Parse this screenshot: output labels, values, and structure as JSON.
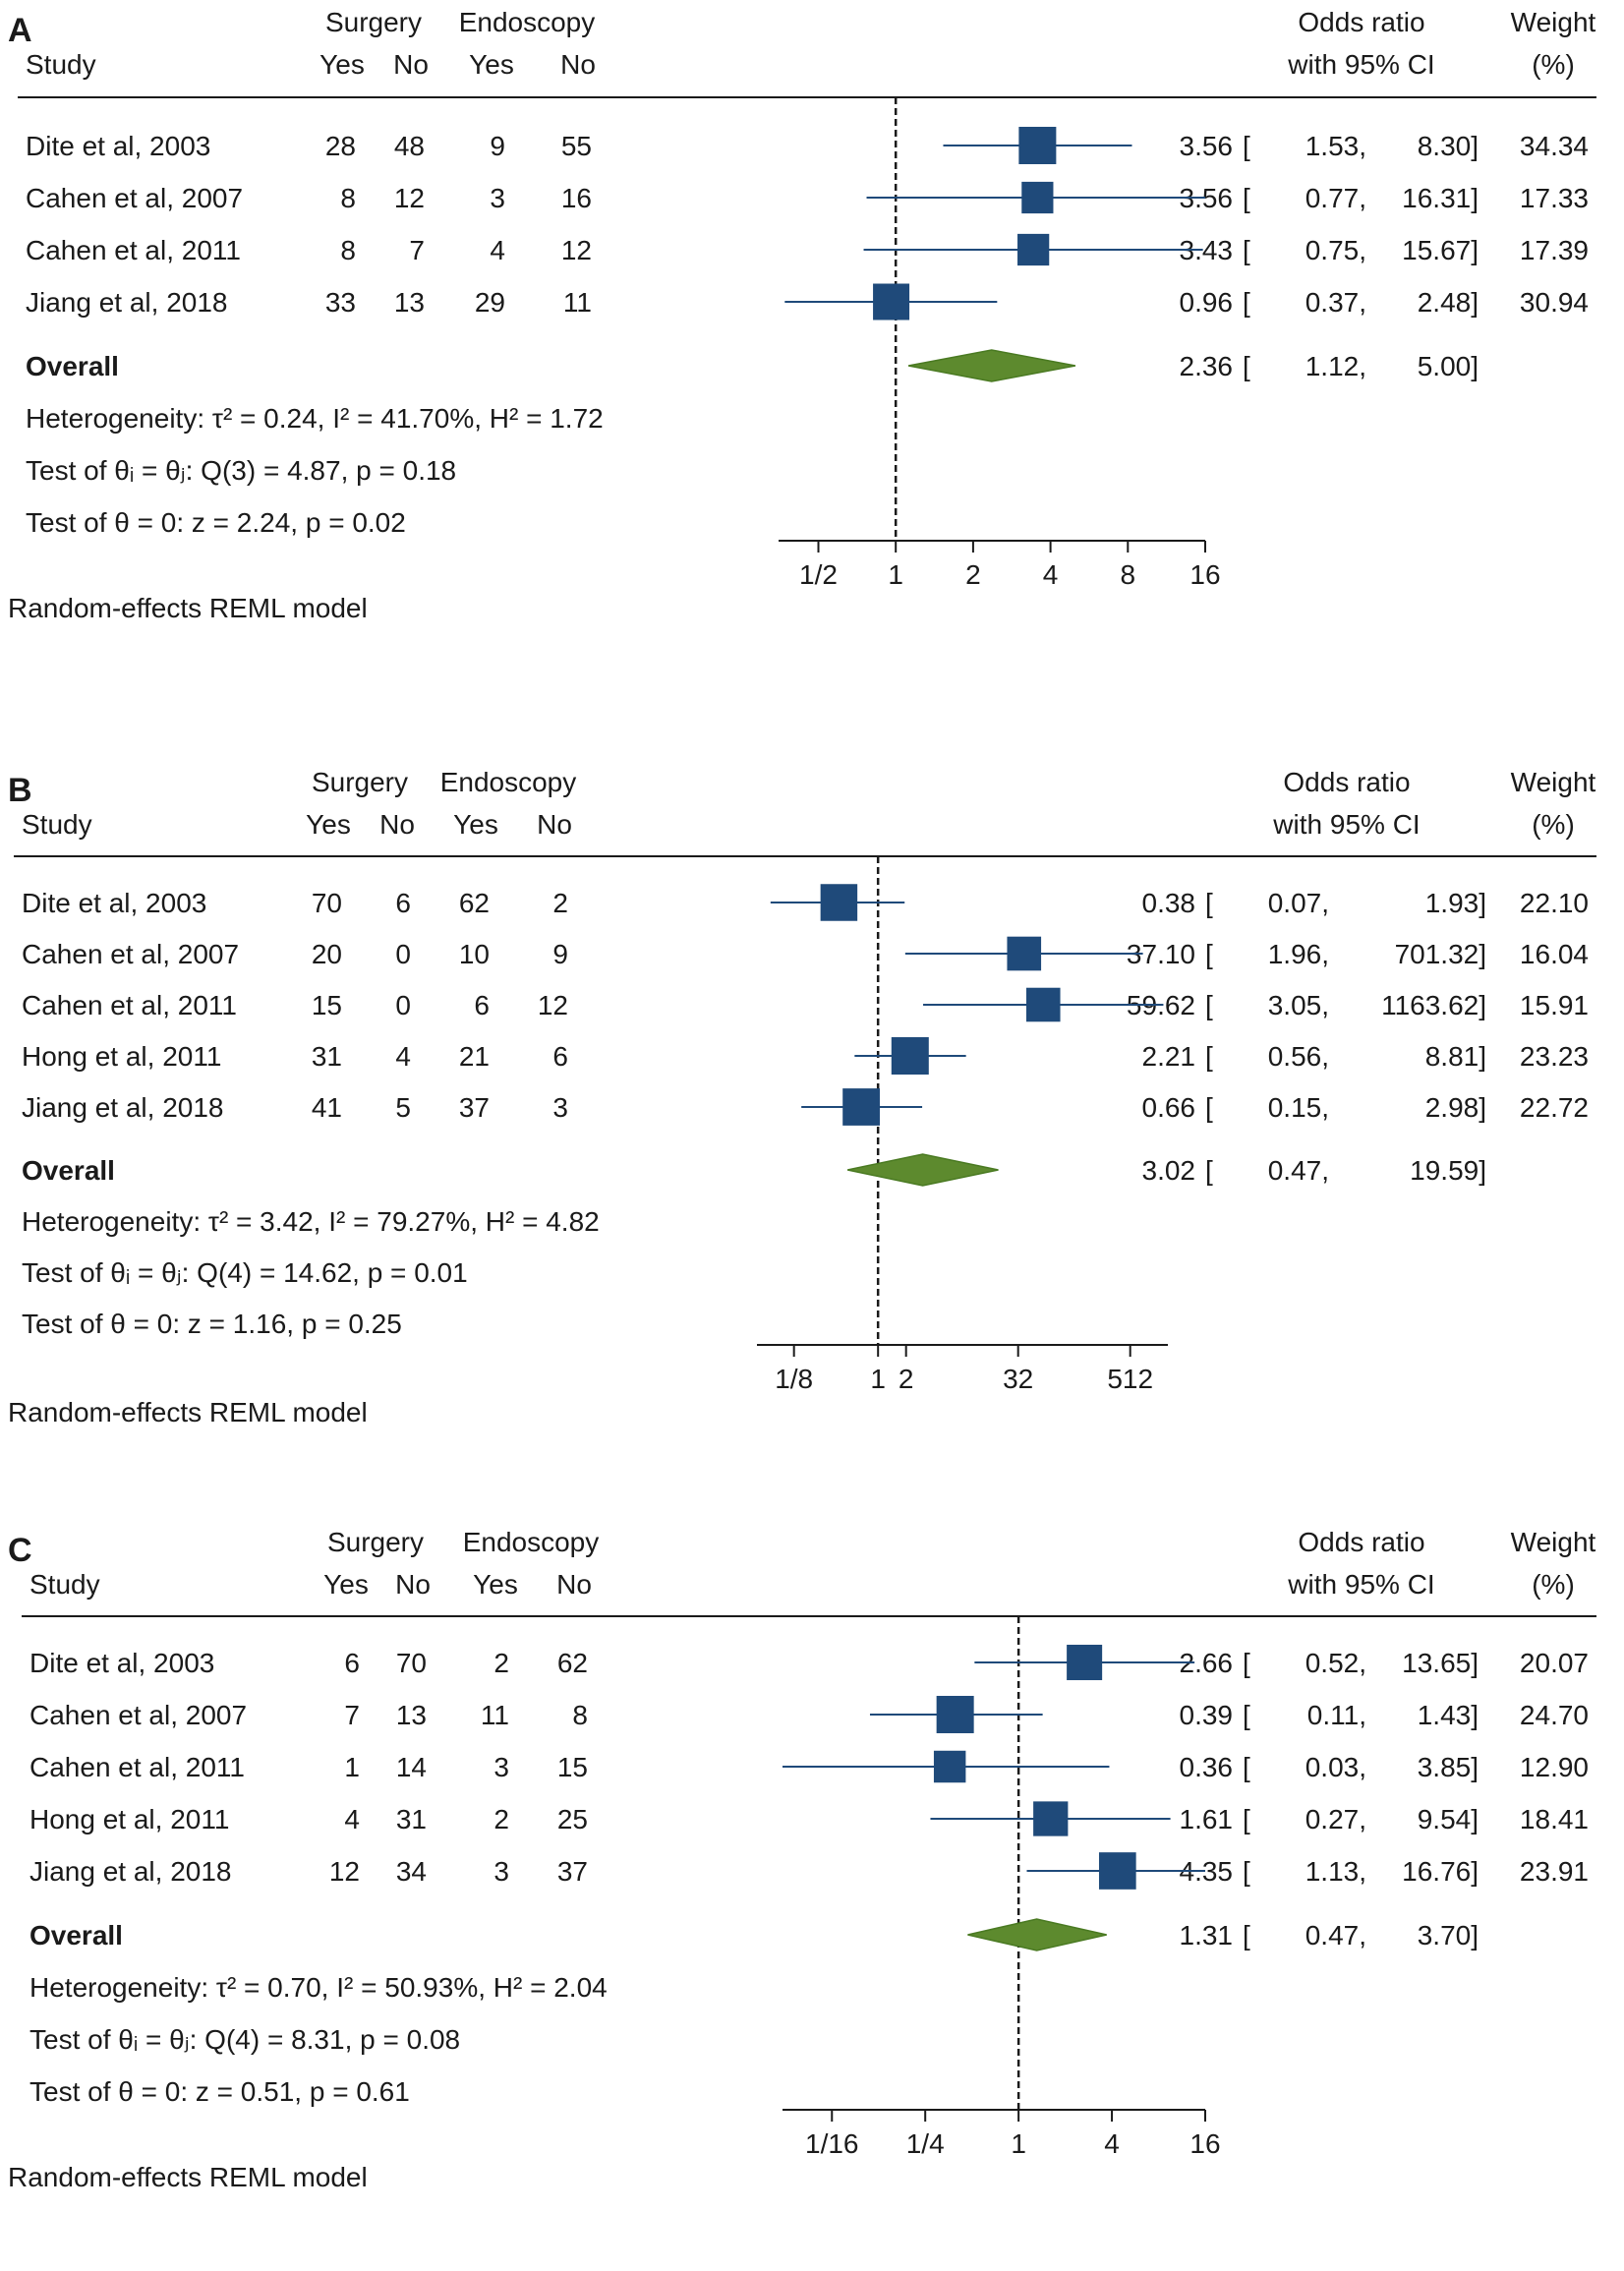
{
  "chart_data": [
    {
      "type": "forest",
      "panel_label": "A",
      "headers": {
        "study": "Study",
        "group1": "Surgery",
        "group2": "Endoscopy",
        "yes": "Yes",
        "no": "No",
        "or_line1": "Odds ratio",
        "or_line2": "with 95% CI",
        "weight_line1": "Weight",
        "weight_line2": "(%)"
      },
      "studies": [
        {
          "name": "Dite et al, 2003",
          "g1_yes": "28",
          "g1_no": "48",
          "g2_yes": "9",
          "g2_no": "55",
          "or": 3.56,
          "lo": 1.53,
          "hi": 8.3,
          "or_text": "3.56",
          "lo_text": "1.53,",
          "hi_text": "8.30]",
          "weight": 34.34,
          "weight_text": "34.34"
        },
        {
          "name": "Cahen et al, 2007",
          "g1_yes": "8",
          "g1_no": "12",
          "g2_yes": "3",
          "g2_no": "16",
          "or": 3.56,
          "lo": 0.77,
          "hi": 16.31,
          "or_text": "3.56",
          "lo_text": "0.77,",
          "hi_text": "16.31]",
          "weight": 17.33,
          "weight_text": "17.33"
        },
        {
          "name": "Cahen et al, 2011",
          "g1_yes": "8",
          "g1_no": "7",
          "g2_yes": "4",
          "g2_no": "12",
          "or": 3.43,
          "lo": 0.75,
          "hi": 15.67,
          "or_text": "3.43",
          "lo_text": "0.75,",
          "hi_text": "15.67]",
          "weight": 17.39,
          "weight_text": "17.39"
        },
        {
          "name": "Jiang et al, 2018",
          "g1_yes": "33",
          "g1_no": "13",
          "g2_yes": "29",
          "g2_no": "11",
          "or": 0.96,
          "lo": 0.37,
          "hi": 2.48,
          "or_text": "0.96",
          "lo_text": "0.37,",
          "hi_text": "2.48]",
          "weight": 30.94,
          "weight_text": "30.94"
        }
      ],
      "overall": {
        "label": "Overall",
        "or": 2.36,
        "lo": 1.12,
        "hi": 5.0,
        "or_text": "2.36",
        "lo_text": "1.12,",
        "hi_text": "5.00]"
      },
      "stats": {
        "heterogeneity": "Heterogeneity: τ² = 0.24, I² = 41.70%, H² = 1.72",
        "test_eq": "Test of θᵢ = θⱼ: Q(3) = 4.87, p = 0.18",
        "test_zero": "Test of θ = 0: z = 2.24, p = 0.02"
      },
      "x_ticks": [
        {
          "value": 0.5,
          "label": "1/2"
        },
        {
          "value": 1,
          "label": "1"
        },
        {
          "value": 2,
          "label": "2"
        },
        {
          "value": 4,
          "label": "4"
        },
        {
          "value": 8,
          "label": "8"
        },
        {
          "value": 16,
          "label": "16"
        }
      ],
      "x_range": [
        0.35,
        16
      ],
      "scale": "log2",
      "reference_line": 1,
      "model_note": "Random-effects REML model"
    },
    {
      "type": "forest",
      "panel_label": "B",
      "headers": {
        "study": "Study",
        "group1": "Surgery",
        "group2": "Endoscopy",
        "yes": "Yes",
        "no": "No",
        "or_line1": "Odds ratio",
        "or_line2": "with 95% CI",
        "weight_line1": "Weight",
        "weight_line2": "(%)"
      },
      "studies": [
        {
          "name": "Dite et al, 2003",
          "g1_yes": "70",
          "g1_no": "6",
          "g2_yes": "62",
          "g2_no": "2",
          "or": 0.38,
          "lo": 0.07,
          "hi": 1.93,
          "or_text": "0.38",
          "lo_text": "0.07,",
          "hi_text": "1.93]",
          "weight": 22.1,
          "weight_text": "22.10"
        },
        {
          "name": "Cahen et al, 2007",
          "g1_yes": "20",
          "g1_no": "0",
          "g2_yes": "10",
          "g2_no": "9",
          "or": 37.1,
          "lo": 1.96,
          "hi": 701.32,
          "or_text": "37.10",
          "lo_text": "1.96,",
          "hi_text": "701.32]",
          "weight": 16.04,
          "weight_text": "16.04"
        },
        {
          "name": "Cahen et al, 2011",
          "g1_yes": "15",
          "g1_no": "0",
          "g2_yes": "6",
          "g2_no": "12",
          "or": 59.62,
          "lo": 3.05,
          "hi": 1163.62,
          "or_text": "59.62",
          "lo_text": "3.05,",
          "hi_text": "1163.62]",
          "weight": 15.91,
          "weight_text": "15.91"
        },
        {
          "name": "Hong et al, 2011",
          "g1_yes": "31",
          "g1_no": "4",
          "g2_yes": "21",
          "g2_no": "6",
          "or": 2.21,
          "lo": 0.56,
          "hi": 8.81,
          "or_text": "2.21",
          "lo_text": "0.56,",
          "hi_text": "8.81]",
          "weight": 23.23,
          "weight_text": "23.23"
        },
        {
          "name": "Jiang et al, 2018",
          "g1_yes": "41",
          "g1_no": "5",
          "g2_yes": "37",
          "g2_no": "3",
          "or": 0.66,
          "lo": 0.15,
          "hi": 2.98,
          "or_text": "0.66",
          "lo_text": "0.15,",
          "hi_text": "2.98]",
          "weight": 22.72,
          "weight_text": "22.72"
        }
      ],
      "overall": {
        "label": "Overall",
        "or": 3.02,
        "lo": 0.47,
        "hi": 19.59,
        "or_text": "3.02",
        "lo_text": "0.47,",
        "hi_text": "19.59]"
      },
      "stats": {
        "heterogeneity": "Heterogeneity: τ² = 3.42, I² = 79.27%, H² = 4.82",
        "test_eq": "Test of θᵢ = θⱼ: Q(4) = 14.62, p = 0.01",
        "test_zero": "Test of θ = 0: z = 1.16, p = 0.25"
      },
      "x_ticks": [
        {
          "value": 0.125,
          "label": "1/8"
        },
        {
          "value": 1,
          "label": "1"
        },
        {
          "value": 2,
          "label": "2"
        },
        {
          "value": 32,
          "label": "32"
        },
        {
          "value": 512,
          "label": "512"
        }
      ],
      "x_range": [
        0.05,
        1300
      ],
      "scale": "log2",
      "reference_line": 1,
      "model_note": "Random-effects REML model"
    },
    {
      "type": "forest",
      "panel_label": "C",
      "headers": {
        "study": "Study",
        "group1": "Surgery",
        "group2": "Endoscopy",
        "yes": "Yes",
        "no": "No",
        "or_line1": "Odds ratio",
        "or_line2": "with 95% CI",
        "weight_line1": "Weight",
        "weight_line2": "(%)"
      },
      "studies": [
        {
          "name": "Dite et al, 2003",
          "g1_yes": "6",
          "g1_no": "70",
          "g2_yes": "2",
          "g2_no": "62",
          "or": 2.66,
          "lo": 0.52,
          "hi": 13.65,
          "or_text": "2.66",
          "lo_text": "0.52,",
          "hi_text": "13.65]",
          "weight": 20.07,
          "weight_text": "20.07"
        },
        {
          "name": "Cahen et al, 2007",
          "g1_yes": "7",
          "g1_no": "13",
          "g2_yes": "11",
          "g2_no": "8",
          "or": 0.39,
          "lo": 0.11,
          "hi": 1.43,
          "or_text": "0.39",
          "lo_text": "0.11,",
          "hi_text": "1.43]",
          "weight": 24.7,
          "weight_text": "24.70"
        },
        {
          "name": "Cahen et al, 2011",
          "g1_yes": "1",
          "g1_no": "14",
          "g2_yes": "3",
          "g2_no": "15",
          "or": 0.36,
          "lo": 0.03,
          "hi": 3.85,
          "or_text": "0.36",
          "lo_text": "0.03,",
          "hi_text": "3.85]",
          "weight": 12.9,
          "weight_text": "12.90"
        },
        {
          "name": "Hong et al, 2011",
          "g1_yes": "4",
          "g1_no": "31",
          "g2_yes": "2",
          "g2_no": "25",
          "or": 1.61,
          "lo": 0.27,
          "hi": 9.54,
          "or_text": "1.61",
          "lo_text": "0.27,",
          "hi_text": "9.54]",
          "weight": 18.41,
          "weight_text": "18.41"
        },
        {
          "name": "Jiang et al, 2018",
          "g1_yes": "12",
          "g1_no": "34",
          "g2_yes": "3",
          "g2_no": "37",
          "or": 4.35,
          "lo": 1.13,
          "hi": 16.76,
          "or_text": "4.35",
          "lo_text": "1.13,",
          "hi_text": "16.76]",
          "weight": 23.91,
          "weight_text": "23.91"
        }
      ],
      "overall": {
        "label": "Overall",
        "or": 1.31,
        "lo": 0.47,
        "hi": 3.7,
        "or_text": "1.31",
        "lo_text": "0.47,",
        "hi_text": "3.70]"
      },
      "stats": {
        "heterogeneity": "Heterogeneity: τ² = 0.70, I² = 50.93%, H² = 2.04",
        "test_eq": "Test of θᵢ = θⱼ: Q(4) = 8.31, p = 0.08",
        "test_zero": "Test of θ = 0: z = 0.51, p = 0.61"
      },
      "x_ticks": [
        {
          "value": 0.0625,
          "label": "1/16"
        },
        {
          "value": 0.25,
          "label": "1/4"
        },
        {
          "value": 1,
          "label": "1"
        },
        {
          "value": 4,
          "label": "4"
        },
        {
          "value": 16,
          "label": "16"
        }
      ],
      "x_range": [
        0.03,
        16
      ],
      "scale": "log2",
      "reference_line": 1,
      "model_note": "Random-effects REML model"
    }
  ],
  "colors": {
    "marker": "#1f4a7a",
    "ci_line": "#1f4a7a",
    "diamond": "#5d8a2e",
    "diamond_stroke": "#4a7a22",
    "text": "#1a1a1a",
    "rule": "#1a1a1a"
  }
}
